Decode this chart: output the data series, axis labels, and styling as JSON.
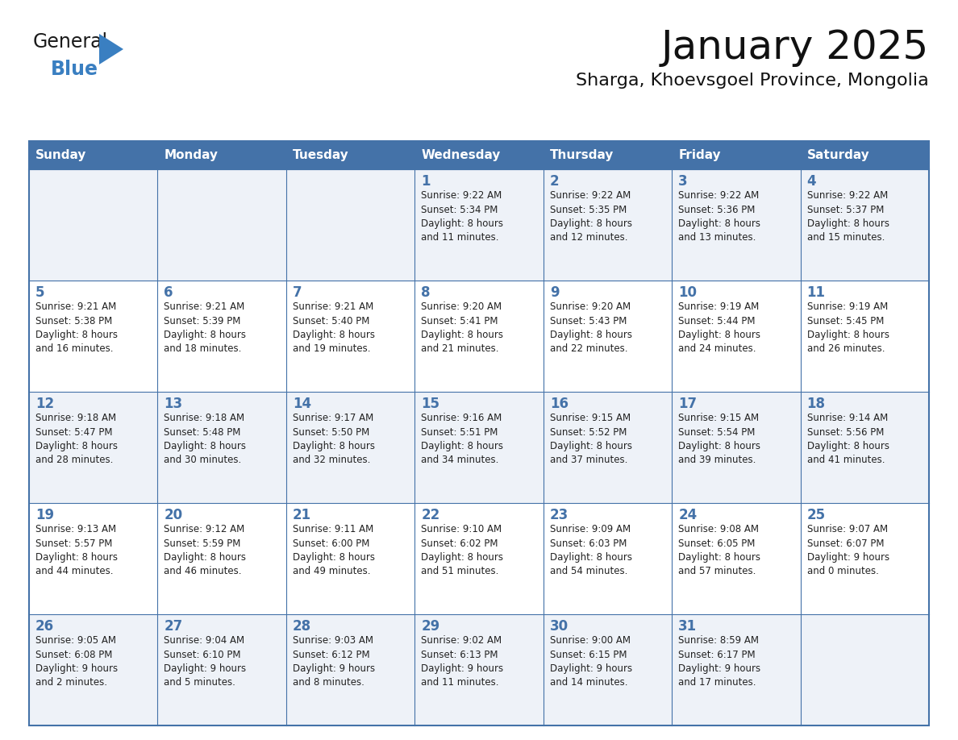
{
  "title": "January 2025",
  "subtitle": "Sharga, Khoevsgoel Province, Mongolia",
  "header_bg": "#4472a8",
  "header_text_color": "#ffffff",
  "row_bg_odd": "#eef2f8",
  "row_bg_even": "#ffffff",
  "border_color": "#4472a8",
  "text_color": "#222222",
  "day_number_color": "#4472a8",
  "day_headers": [
    "Sunday",
    "Monday",
    "Tuesday",
    "Wednesday",
    "Thursday",
    "Friday",
    "Saturday"
  ],
  "calendar": [
    [
      {
        "day": "",
        "info": ""
      },
      {
        "day": "",
        "info": ""
      },
      {
        "day": "",
        "info": ""
      },
      {
        "day": "1",
        "info": "Sunrise: 9:22 AM\nSunset: 5:34 PM\nDaylight: 8 hours\nand 11 minutes."
      },
      {
        "day": "2",
        "info": "Sunrise: 9:22 AM\nSunset: 5:35 PM\nDaylight: 8 hours\nand 12 minutes."
      },
      {
        "day": "3",
        "info": "Sunrise: 9:22 AM\nSunset: 5:36 PM\nDaylight: 8 hours\nand 13 minutes."
      },
      {
        "day": "4",
        "info": "Sunrise: 9:22 AM\nSunset: 5:37 PM\nDaylight: 8 hours\nand 15 minutes."
      }
    ],
    [
      {
        "day": "5",
        "info": "Sunrise: 9:21 AM\nSunset: 5:38 PM\nDaylight: 8 hours\nand 16 minutes."
      },
      {
        "day": "6",
        "info": "Sunrise: 9:21 AM\nSunset: 5:39 PM\nDaylight: 8 hours\nand 18 minutes."
      },
      {
        "day": "7",
        "info": "Sunrise: 9:21 AM\nSunset: 5:40 PM\nDaylight: 8 hours\nand 19 minutes."
      },
      {
        "day": "8",
        "info": "Sunrise: 9:20 AM\nSunset: 5:41 PM\nDaylight: 8 hours\nand 21 minutes."
      },
      {
        "day": "9",
        "info": "Sunrise: 9:20 AM\nSunset: 5:43 PM\nDaylight: 8 hours\nand 22 minutes."
      },
      {
        "day": "10",
        "info": "Sunrise: 9:19 AM\nSunset: 5:44 PM\nDaylight: 8 hours\nand 24 minutes."
      },
      {
        "day": "11",
        "info": "Sunrise: 9:19 AM\nSunset: 5:45 PM\nDaylight: 8 hours\nand 26 minutes."
      }
    ],
    [
      {
        "day": "12",
        "info": "Sunrise: 9:18 AM\nSunset: 5:47 PM\nDaylight: 8 hours\nand 28 minutes."
      },
      {
        "day": "13",
        "info": "Sunrise: 9:18 AM\nSunset: 5:48 PM\nDaylight: 8 hours\nand 30 minutes."
      },
      {
        "day": "14",
        "info": "Sunrise: 9:17 AM\nSunset: 5:50 PM\nDaylight: 8 hours\nand 32 minutes."
      },
      {
        "day": "15",
        "info": "Sunrise: 9:16 AM\nSunset: 5:51 PM\nDaylight: 8 hours\nand 34 minutes."
      },
      {
        "day": "16",
        "info": "Sunrise: 9:15 AM\nSunset: 5:52 PM\nDaylight: 8 hours\nand 37 minutes."
      },
      {
        "day": "17",
        "info": "Sunrise: 9:15 AM\nSunset: 5:54 PM\nDaylight: 8 hours\nand 39 minutes."
      },
      {
        "day": "18",
        "info": "Sunrise: 9:14 AM\nSunset: 5:56 PM\nDaylight: 8 hours\nand 41 minutes."
      }
    ],
    [
      {
        "day": "19",
        "info": "Sunrise: 9:13 AM\nSunset: 5:57 PM\nDaylight: 8 hours\nand 44 minutes."
      },
      {
        "day": "20",
        "info": "Sunrise: 9:12 AM\nSunset: 5:59 PM\nDaylight: 8 hours\nand 46 minutes."
      },
      {
        "day": "21",
        "info": "Sunrise: 9:11 AM\nSunset: 6:00 PM\nDaylight: 8 hours\nand 49 minutes."
      },
      {
        "day": "22",
        "info": "Sunrise: 9:10 AM\nSunset: 6:02 PM\nDaylight: 8 hours\nand 51 minutes."
      },
      {
        "day": "23",
        "info": "Sunrise: 9:09 AM\nSunset: 6:03 PM\nDaylight: 8 hours\nand 54 minutes."
      },
      {
        "day": "24",
        "info": "Sunrise: 9:08 AM\nSunset: 6:05 PM\nDaylight: 8 hours\nand 57 minutes."
      },
      {
        "day": "25",
        "info": "Sunrise: 9:07 AM\nSunset: 6:07 PM\nDaylight: 9 hours\nand 0 minutes."
      }
    ],
    [
      {
        "day": "26",
        "info": "Sunrise: 9:05 AM\nSunset: 6:08 PM\nDaylight: 9 hours\nand 2 minutes."
      },
      {
        "day": "27",
        "info": "Sunrise: 9:04 AM\nSunset: 6:10 PM\nDaylight: 9 hours\nand 5 minutes."
      },
      {
        "day": "28",
        "info": "Sunrise: 9:03 AM\nSunset: 6:12 PM\nDaylight: 9 hours\nand 8 minutes."
      },
      {
        "day": "29",
        "info": "Sunrise: 9:02 AM\nSunset: 6:13 PM\nDaylight: 9 hours\nand 11 minutes."
      },
      {
        "day": "30",
        "info": "Sunrise: 9:00 AM\nSunset: 6:15 PM\nDaylight: 9 hours\nand 14 minutes."
      },
      {
        "day": "31",
        "info": "Sunrise: 8:59 AM\nSunset: 6:17 PM\nDaylight: 9 hours\nand 17 minutes."
      },
      {
        "day": "",
        "info": ""
      }
    ]
  ],
  "logo_general_color": "#1a1a1a",
  "logo_blue_color": "#3a7fc1",
  "logo_triangle_color": "#3a7fc1"
}
